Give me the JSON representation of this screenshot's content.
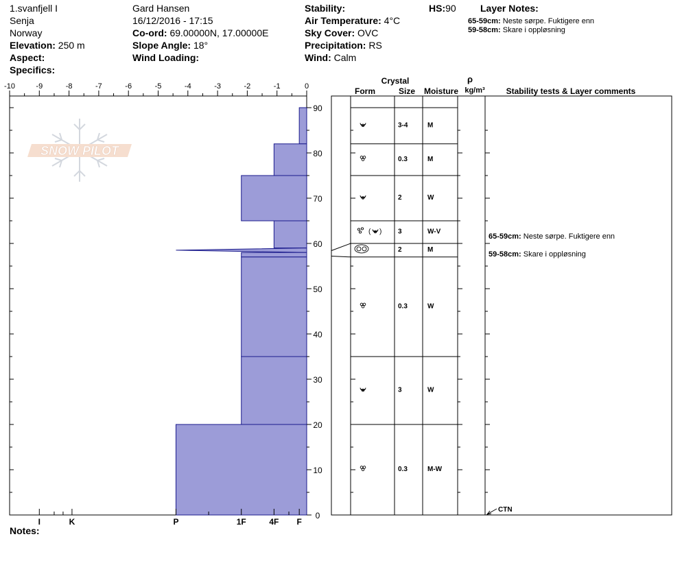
{
  "header": {
    "location": "1.svanfjell I",
    "region": "Senja",
    "country": "Norway",
    "elevation_label": "Elevation:",
    "elevation_value": "250 m",
    "aspect_label": "Aspect:",
    "specifics_label": "Specifics:",
    "observer": "Gard Hansen",
    "datetime": "16/12/2016 - 17:15",
    "coord_label": "Co-ord:",
    "coord_value": "69.00000N, 17.00000E",
    "slope_label": "Slope Angle:",
    "slope_value": "18°",
    "wind_loading_label": "Wind Loading:",
    "stability_label": "Stability:",
    "air_temp_label": "Air Temperature:",
    "air_temp_value": "4°C",
    "sky_label": "Sky Cover:",
    "sky_value": "OVC",
    "precip_label": "Precipitation:",
    "precip_value": "RS",
    "wind_label": "Wind:",
    "wind_value": "Calm",
    "hs_label": "HS:",
    "hs_value": "90",
    "layer_notes_label": "Layer Notes:",
    "layer_notes": [
      {
        "range": "65-59cm:",
        "text": "Neste sørpe. Fuktigere enn"
      },
      {
        "range": "59-58cm:",
        "text": "Skare i oppløsning"
      }
    ]
  },
  "logo_text": "SNOW PILOT",
  "notes_label": "Notes:",
  "table_headers": {
    "crystal": "Crystal",
    "form": "Form",
    "size": "Size",
    "moisture": "Moisture",
    "rho": "ρ",
    "density_unit": "kg/m³",
    "stability": "Stability tests & Layer comments"
  },
  "stability_tests": [
    {
      "label": "CTN",
      "depth": 0
    }
  ],
  "colors": {
    "hardness_fill": "#9c9cd8",
    "hardness_stroke": "#1a1a8c",
    "frame": "#000000"
  },
  "chart_data": {
    "type": "bar",
    "orientation": "horizontal",
    "title": "",
    "xlabel": "",
    "ylabel": "",
    "x_ticks": [
      "-10",
      "-9",
      "-8",
      "-7",
      "-6",
      "-5",
      "-4",
      "-3",
      "-2",
      "-1",
      "0"
    ],
    "xlim": [
      -10,
      0
    ],
    "ylim": [
      0,
      90
    ],
    "y_ticks": [
      "0",
      "10",
      "20",
      "30",
      "40",
      "50",
      "60",
      "70",
      "80",
      "90"
    ],
    "hardness_labels": [
      {
        "label": "I",
        "value": -9.0
      },
      {
        "label": "K",
        "value": -7.9
      },
      {
        "label": "P",
        "value": -4.4
      },
      {
        "label": "1F",
        "value": -2.2
      },
      {
        "label": "4F",
        "value": -1.1
      },
      {
        "label": "F",
        "value": -0.25
      }
    ],
    "layers": [
      {
        "top": 90,
        "bottom": 82,
        "hardness": -0.25,
        "form": "rounding",
        "size": "3-4",
        "moisture": "M"
      },
      {
        "top": 82,
        "bottom": 75,
        "hardness": -1.1,
        "form": "rounded",
        "size": "0.3",
        "moisture": "M"
      },
      {
        "top": 75,
        "bottom": 65,
        "hardness": -2.2,
        "form": "rounding",
        "size": "2",
        "moisture": "W"
      },
      {
        "top": 65,
        "bottom": 59,
        "hardness": -1.1,
        "form": "mixed",
        "form_suffix": "(",
        "form_suffix_end": ")",
        "size": "3",
        "moisture": "W-V"
      },
      {
        "top": 59,
        "bottom": 58,
        "hardness": -4.4,
        "form": "clustered",
        "size": "2",
        "moisture": "M"
      },
      {
        "top": 58,
        "bottom": 57,
        "hardness": -2.2
      },
      {
        "top": 57,
        "bottom": 35,
        "hardness": -2.2,
        "form": "rounded",
        "size": "0.3",
        "moisture": "W"
      },
      {
        "top": 35,
        "bottom": 20,
        "hardness": -2.2,
        "form": "rounding",
        "size": "3",
        "moisture": "W"
      },
      {
        "top": 20,
        "bottom": 0,
        "hardness": -4.4,
        "form": "rounded",
        "size": "0.3",
        "moisture": "M-W"
      }
    ],
    "layer_comments": [
      {
        "depth": 60,
        "range": "65-59cm:",
        "text": "Neste sørpe. Fuktigere enn"
      },
      {
        "depth": 58.5,
        "range": "59-58cm:",
        "text": "Skare i oppløsning"
      }
    ]
  }
}
